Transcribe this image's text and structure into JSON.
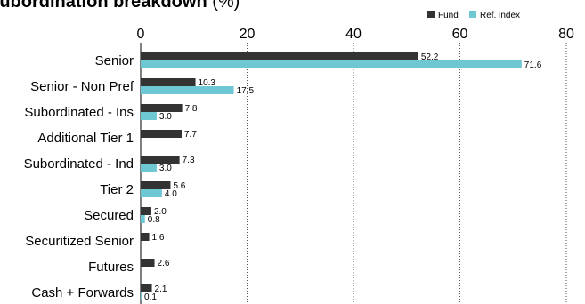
{
  "chart_data": {
    "type": "bar",
    "orientation": "horizontal",
    "title": "Subordination breakdown",
    "title_unit": "(%)",
    "xlim": [
      0,
      80
    ],
    "xticks": [
      "0",
      "20",
      "40",
      "60",
      "80"
    ],
    "grid": "vertical dotted",
    "legend_position": "top-right",
    "categories": [
      "Senior",
      "Senior - Non Pref",
      "Subordinated - Ins",
      "Additional Tier 1",
      "Subordinated - Ind",
      "Tier 2",
      "Secured",
      "Securitized Senior",
      "Futures",
      "Cash + Forwards"
    ],
    "series": [
      {
        "name": "Fund",
        "color": "#333333",
        "values": [
          52.2,
          10.3,
          7.8,
          7.7,
          7.3,
          5.6,
          2.0,
          1.6,
          2.6,
          2.1
        ],
        "labels": [
          "52.2",
          "10.3",
          "7.8",
          "7.7",
          "7.3",
          "5.6",
          "2.0",
          "1.6",
          "2.6",
          "2.1"
        ]
      },
      {
        "name": "Ref. index",
        "color": "#6ec8d4",
        "values": [
          71.6,
          17.5,
          3.0,
          null,
          3.0,
          4.0,
          0.8,
          null,
          null,
          0.1
        ],
        "labels": [
          "71.6",
          "17.5",
          "3.0",
          null,
          "3.0",
          "4.0",
          "0.8",
          null,
          null,
          "0.1"
        ]
      }
    ]
  }
}
